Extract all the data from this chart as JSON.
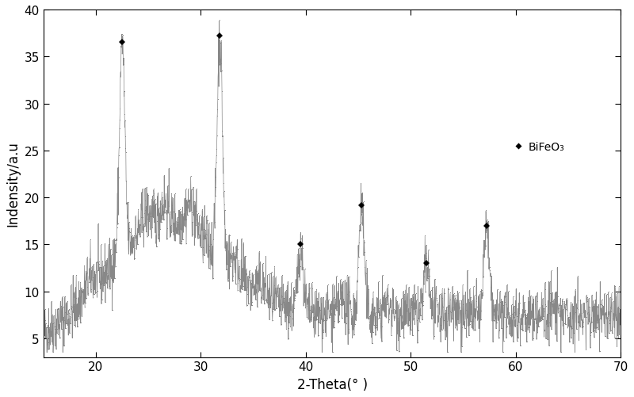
{
  "xlabel": "2-Theta(° )",
  "ylabel": "Indensity/a.u",
  "xlim": [
    15,
    70
  ],
  "ylim": [
    3,
    40
  ],
  "yticks": [
    5,
    10,
    15,
    20,
    25,
    30,
    35,
    40
  ],
  "xticks": [
    20,
    30,
    40,
    50,
    60,
    70
  ],
  "legend_label": "BiFeO₃",
  "peak_positions": [
    22.5,
    31.8,
    39.5,
    45.3,
    51.5,
    57.2
  ],
  "peak_heights": [
    36.5,
    37.2,
    15.0,
    19.2,
    13.0,
    17.0
  ],
  "background_color": "white",
  "line_color": "#888888",
  "seed": 42
}
